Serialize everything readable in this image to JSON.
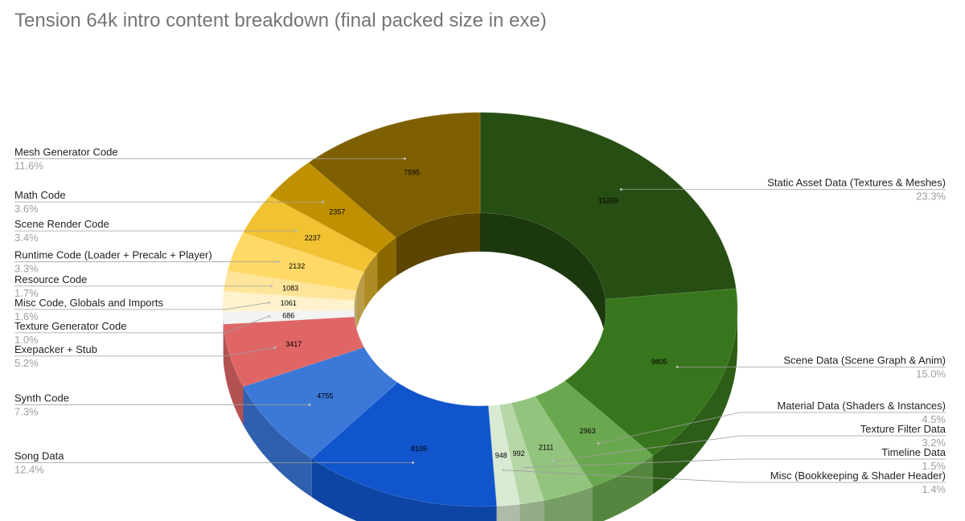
{
  "chart_data": {
    "type": "pie",
    "title": "Tension 64k intro content breakdown (final packed size in exe)",
    "donut": true,
    "three_d": true,
    "legend": "labels-outside",
    "slices": [
      {
        "label": "Static Asset Data (Textures & Meshes)",
        "value": 15269,
        "percent": "23.3%",
        "color": "#274e13"
      },
      {
        "label": "Scene Data (Scene Graph & Anim)",
        "value": 9805,
        "percent": "15.0%",
        "color": "#38761d"
      },
      {
        "label": "Material Data (Shaders & Instances)",
        "value": 2963,
        "percent": "4.5%",
        "color": "#6aa84f"
      },
      {
        "label": "Texture Filter Data",
        "value": 2111,
        "percent": "3.2%",
        "color": "#93c47d"
      },
      {
        "label": "Timeline Data",
        "value": 992,
        "percent": "1.5%",
        "color": "#b6d7a8"
      },
      {
        "label": "Misc (Bookkeeping & Shader Header)",
        "value": 948,
        "percent": "1.4%",
        "color": "#d9ead3"
      },
      {
        "label": "Song Data",
        "value": 8105,
        "percent": "12.4%",
        "color": "#1155cc"
      },
      {
        "label": "Synth Code",
        "value": 4755,
        "percent": "7.3%",
        "color": "#3c78d8"
      },
      {
        "label": "Exepacker + Stub",
        "value": 3417,
        "percent": "5.2%",
        "color": "#e06666"
      },
      {
        "label": "Texture Generator Code",
        "value": 686,
        "percent": "1.0%",
        "color": "#f3f3f3"
      },
      {
        "label": "Misc Code, Globals and Imports",
        "value": 1061,
        "percent": "1.6%",
        "color": "#fff2cc"
      },
      {
        "label": "Resource Code",
        "value": 1083,
        "percent": "1.7%",
        "color": "#ffe599"
      },
      {
        "label": "Runtime Code (Loader + Precalc + Player)",
        "value": 2132,
        "percent": "3.3%",
        "color": "#ffd966"
      },
      {
        "label": "Scene Render Code",
        "value": 2237,
        "percent": "3.4%",
        "color": "#f1c232"
      },
      {
        "label": "Math Code",
        "value": 2357,
        "percent": "3.6%",
        "color": "#bf9000"
      },
      {
        "label": "Mesh Generator Code",
        "value": 7595,
        "percent": "11.6%",
        "color": "#7f6000"
      }
    ]
  }
}
